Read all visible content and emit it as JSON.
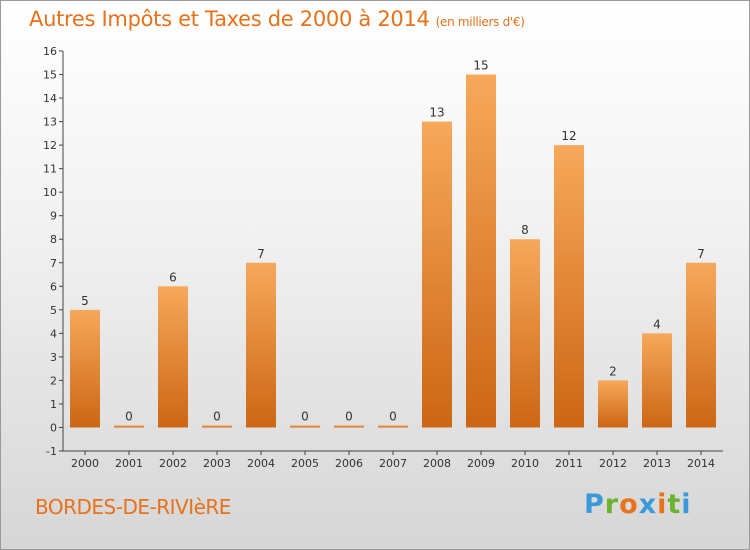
{
  "title": "Autres Impôts et Taxes de 2000 à 2014",
  "subtitle": "(en milliers d'€)",
  "commune": "BORDES-DE-RIVIèRE",
  "logo": {
    "letters": [
      "P",
      "r",
      "o",
      "x",
      "i",
      "t",
      "i"
    ],
    "colors": [
      "#3a9ad9",
      "#6ab42d",
      "#e8711a",
      "#3a9ad9",
      "#e8711a",
      "#6ab42d",
      "#3a9ad9"
    ]
  },
  "colors": {
    "accent": "#e8711a",
    "bar_top": "#f7a85a",
    "bar_bottom": "#cc6614"
  },
  "chart_data": {
    "type": "bar",
    "title": "Autres Impôts et Taxes de 2000 à 2014",
    "subtitle": "(en milliers d'€)",
    "xlabel": "",
    "ylabel": "",
    "categories": [
      "2000",
      "2001",
      "2002",
      "2003",
      "2004",
      "2005",
      "2006",
      "2007",
      "2008",
      "2009",
      "2010",
      "2011",
      "2012",
      "2013",
      "2014"
    ],
    "values": [
      5,
      0,
      6,
      0,
      7,
      0,
      0,
      0,
      13,
      15,
      8,
      12,
      2,
      4,
      7
    ],
    "data_labels": [
      "5",
      "0",
      "6",
      "0",
      "7",
      "0",
      "0",
      "0",
      "13",
      "15",
      "8",
      "12",
      "2",
      "4",
      "7"
    ],
    "ylim": [
      -1,
      16
    ],
    "yticks": [
      "-1",
      "0",
      "1",
      "2",
      "3",
      "4",
      "5",
      "6",
      "7",
      "8",
      "9",
      "10",
      "11",
      "12",
      "13",
      "14",
      "15",
      "16"
    ],
    "grid": false,
    "legend": "none"
  }
}
